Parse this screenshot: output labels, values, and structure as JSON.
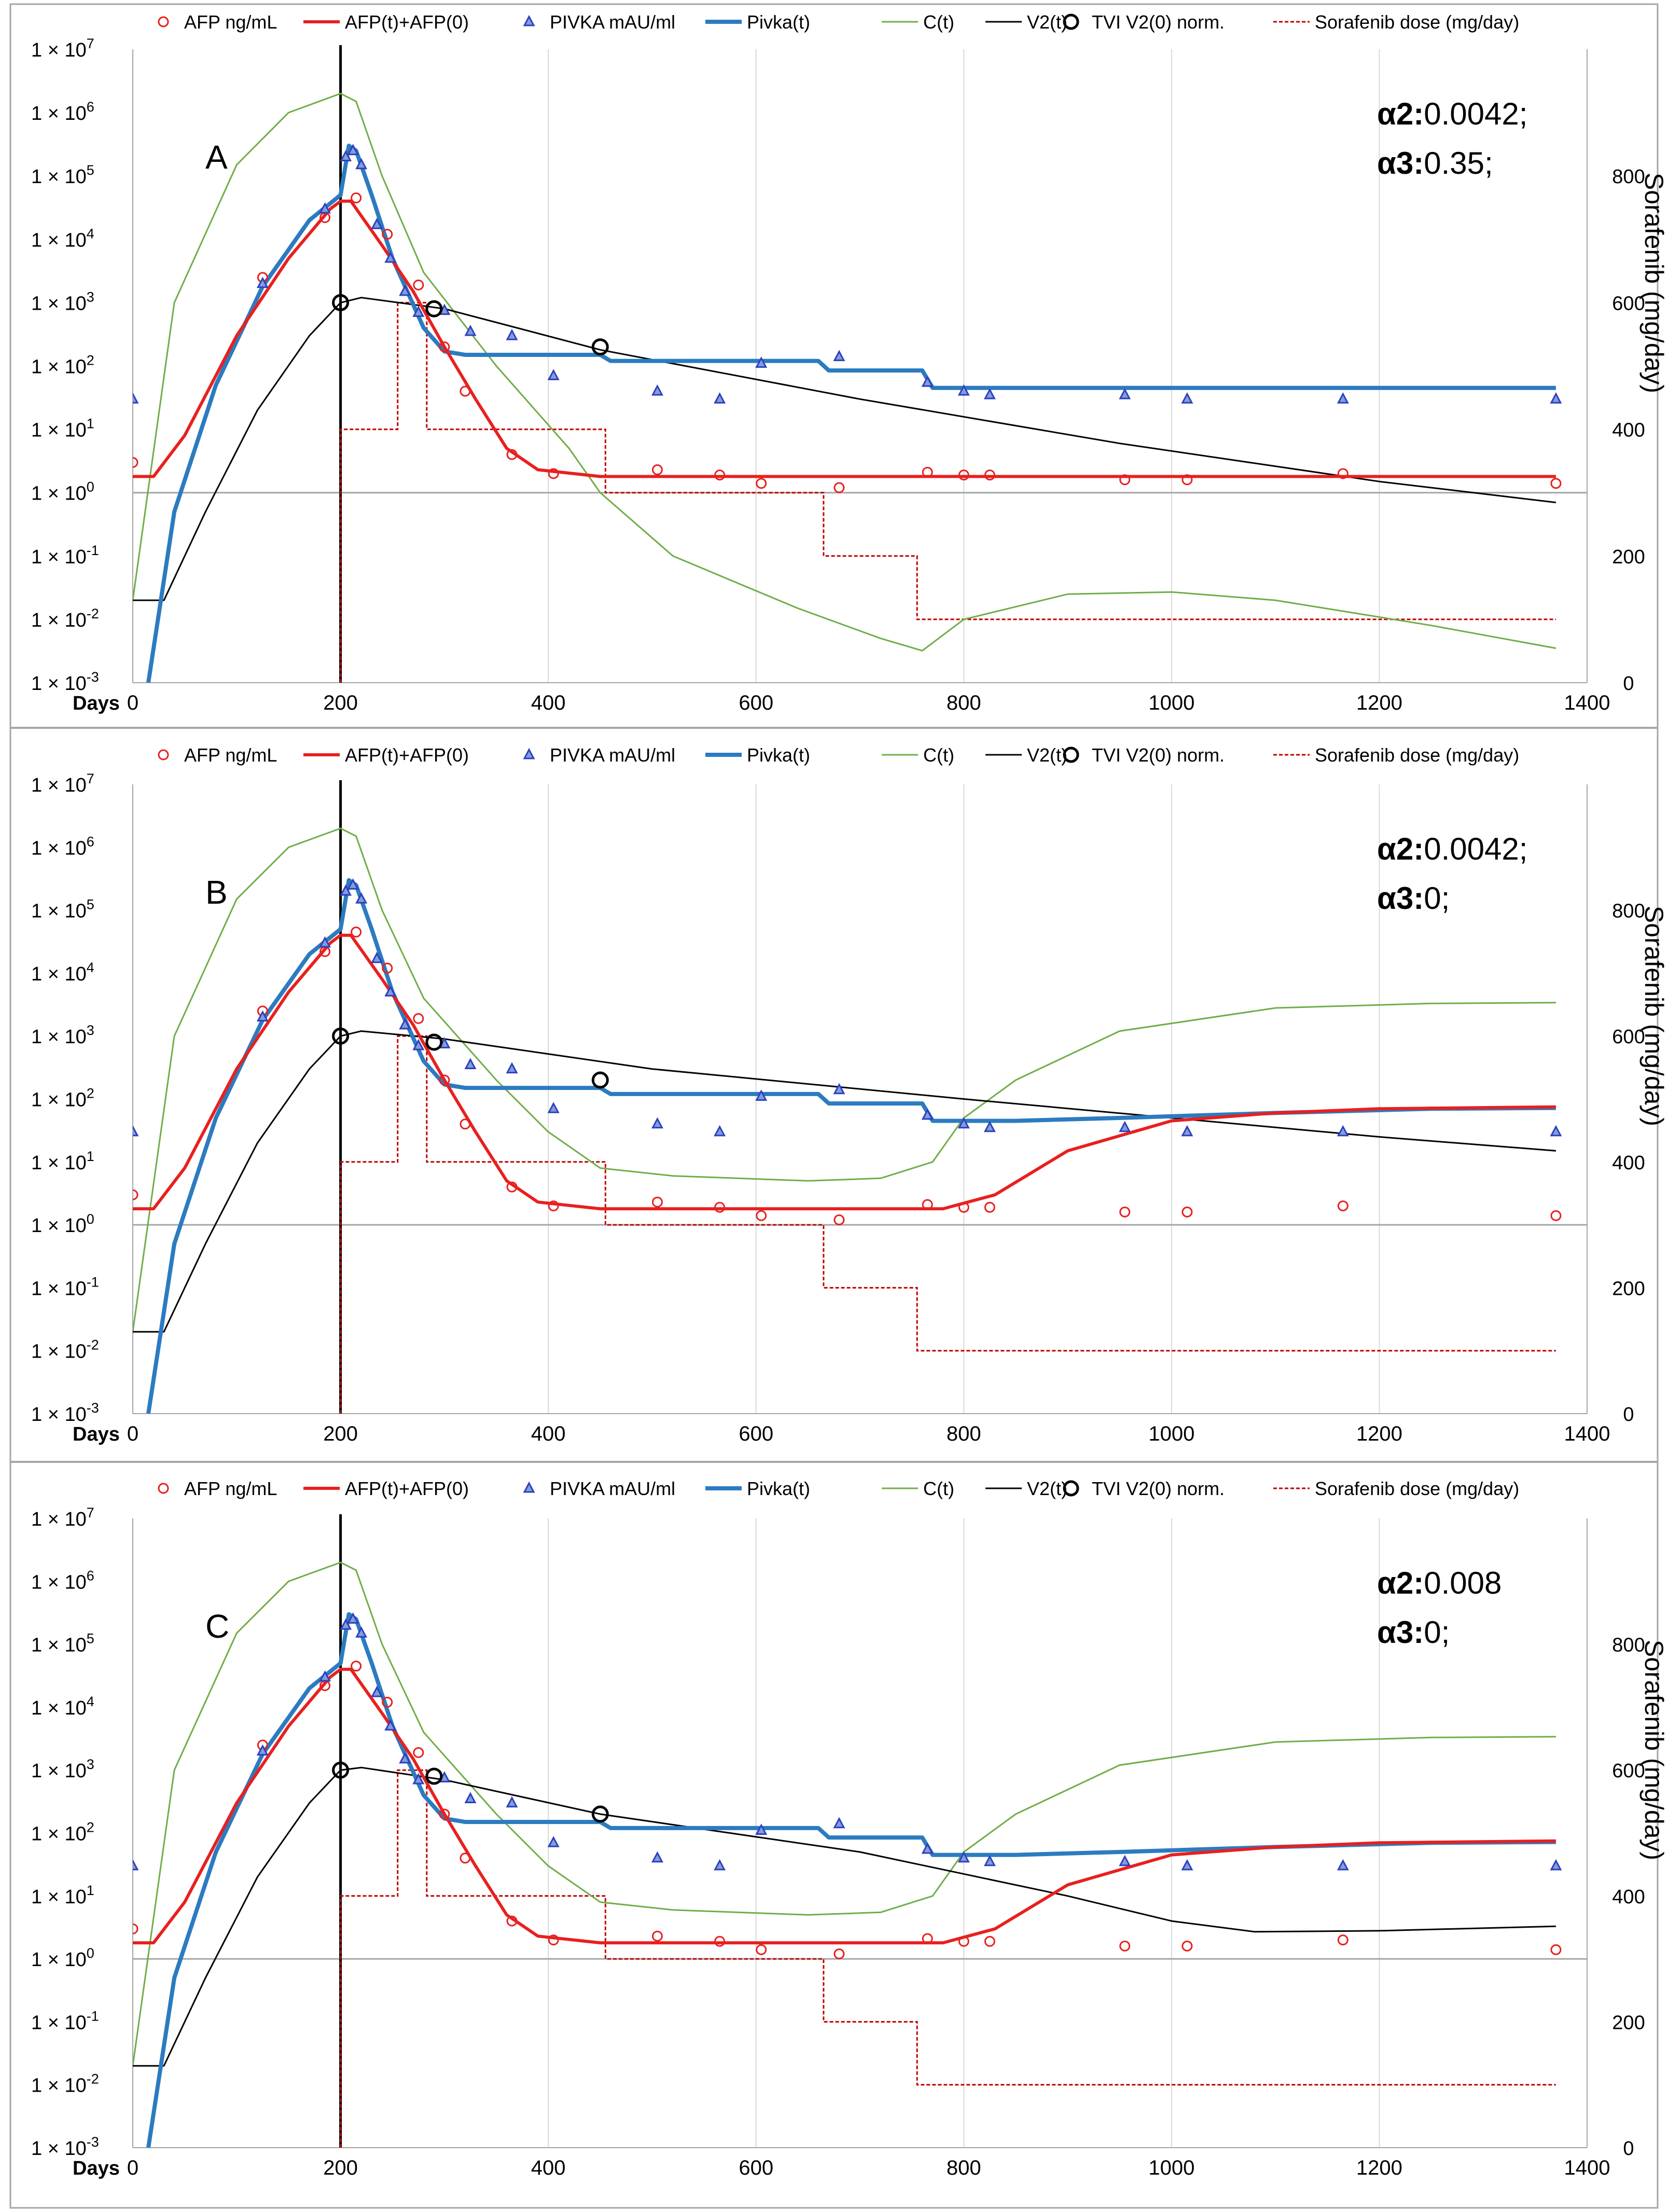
{
  "chart_data": {
    "type": "line",
    "x_axis": {
      "label": "Days",
      "range": [
        0,
        1400
      ],
      "ticks": [
        0,
        200,
        400,
        600,
        800,
        1000,
        1200,
        1400
      ]
    },
    "y_left_axis": {
      "scale": "log",
      "range": [
        0.001,
        10000000
      ],
      "ticks": [
        {
          "mant": "1 × 10",
          "exp": "7"
        },
        {
          "mant": "1 × 10",
          "exp": "6"
        },
        {
          "mant": "1 × 10",
          "exp": "5"
        },
        {
          "mant": "1 × 10",
          "exp": "4"
        },
        {
          "mant": "1 × 10",
          "exp": "3"
        },
        {
          "mant": "1 × 10",
          "exp": "2"
        },
        {
          "mant": "1 × 10",
          "exp": "1"
        },
        {
          "mant": "1 × 10",
          "exp": "0"
        },
        {
          "mant": "1 × 10",
          "exp": "-1"
        },
        {
          "mant": "1 × 10",
          "exp": "-2"
        },
        {
          "mant": "1 × 10",
          "exp": "-3"
        }
      ]
    },
    "y_right_axis": {
      "label": "Sorafenib (mg/day)",
      "range": [
        0,
        1000
      ],
      "ticks": [
        0,
        200,
        400,
        600,
        800
      ]
    },
    "legend": [
      {
        "key": "afp",
        "label": "AFP ng/mL",
        "kind": "circle",
        "color": "#e8201f"
      },
      {
        "key": "afpfit",
        "label": "AFP(t)+AFP(0)",
        "kind": "line",
        "color": "#e8201f"
      },
      {
        "key": "pivka",
        "label": "PIVKA mAU/ml",
        "kind": "triangle",
        "color": "#2f3fbf"
      },
      {
        "key": "pivkafit",
        "label": "Pivka(t)",
        "kind": "line",
        "color": "#2c7bc0"
      },
      {
        "key": "c",
        "label": "C(t)",
        "kind": "line",
        "color": "#70ad47"
      },
      {
        "key": "v2",
        "label": "V2(t)",
        "kind": "line",
        "color": "#000000"
      },
      {
        "key": "tvi",
        "label": "TVI V2(0) norm.",
        "kind": "bigcircle",
        "color": "#000000"
      },
      {
        "key": "dose",
        "label": "Sorafenib dose (mg/day)",
        "kind": "dash",
        "color": "#c00000"
      }
    ],
    "afp_obs": [
      [
        0,
        3
      ],
      [
        125,
        2500
      ],
      [
        185,
        22000
      ],
      [
        215,
        45000
      ],
      [
        245,
        12000
      ],
      [
        275,
        1900
      ],
      [
        300,
        200
      ],
      [
        320,
        40
      ],
      [
        365,
        4
      ],
      [
        405,
        2
      ],
      [
        505,
        2.3
      ],
      [
        565,
        1.9
      ],
      [
        605,
        1.4
      ],
      [
        680,
        1.2
      ],
      [
        765,
        2.1
      ],
      [
        800,
        1.9
      ],
      [
        825,
        1.9
      ],
      [
        955,
        1.6
      ],
      [
        1015,
        1.6
      ],
      [
        1165,
        2
      ],
      [
        1370,
        1.4
      ]
    ],
    "pivka_obs": [
      [
        0,
        30
      ],
      [
        125,
        2000
      ],
      [
        185,
        30000
      ],
      [
        205,
        200000
      ],
      [
        212,
        250000
      ],
      [
        220,
        150000
      ],
      [
        235,
        17000
      ],
      [
        248,
        5000
      ],
      [
        262,
        1500
      ],
      [
        275,
        700
      ],
      [
        300,
        750
      ],
      [
        325,
        350
      ],
      [
        365,
        300
      ],
      [
        405,
        70
      ],
      [
        505,
        40
      ],
      [
        565,
        30
      ],
      [
        605,
        110
      ],
      [
        680,
        140
      ],
      [
        765,
        55
      ],
      [
        800,
        40
      ],
      [
        825,
        35
      ],
      [
        955,
        35
      ],
      [
        1015,
        30
      ],
      [
        1165,
        30
      ],
      [
        1370,
        30
      ]
    ],
    "dose": [
      [
        200,
        0
      ],
      [
        200,
        400
      ],
      [
        255,
        400
      ],
      [
        255,
        600
      ],
      [
        283,
        600
      ],
      [
        283,
        400
      ],
      [
        455,
        400
      ],
      [
        455,
        300
      ],
      [
        665,
        300
      ],
      [
        665,
        200
      ],
      [
        755,
        200
      ],
      [
        755,
        100
      ],
      [
        1370,
        100
      ]
    ],
    "panels": [
      {
        "label": "A",
        "a2_label": "α2:",
        "a2_value": "0.0042;",
        "a3_label": "α3:",
        "a3_value": "0.35;",
        "afp_fit": [
          [
            0,
            1.8
          ],
          [
            20,
            1.8
          ],
          [
            50,
            8
          ],
          [
            100,
            300
          ],
          [
            150,
            5000
          ],
          [
            190,
            30000
          ],
          [
            200,
            40000
          ],
          [
            210,
            40000
          ],
          [
            240,
            8000
          ],
          [
            270,
            1500
          ],
          [
            300,
            200
          ],
          [
            330,
            30
          ],
          [
            360,
            5
          ],
          [
            390,
            2.3
          ],
          [
            450,
            1.8
          ],
          [
            1370,
            1.8
          ]
        ],
        "pivka_fit": [
          [
            15,
            0.001
          ],
          [
            40,
            0.5
          ],
          [
            80,
            50
          ],
          [
            125,
            1800
          ],
          [
            170,
            20000
          ],
          [
            200,
            50000
          ],
          [
            208,
            300000
          ],
          [
            215,
            250000
          ],
          [
            230,
            50000
          ],
          [
            250,
            5000
          ],
          [
            280,
            400
          ],
          [
            300,
            170
          ],
          [
            320,
            150
          ],
          [
            450,
            150
          ],
          [
            460,
            120
          ],
          [
            660,
            120
          ],
          [
            670,
            85
          ],
          [
            760,
            85
          ],
          [
            770,
            45
          ],
          [
            1370,
            45
          ]
        ],
        "c_fit": [
          [
            0,
            0.02
          ],
          [
            40,
            1000
          ],
          [
            100,
            150000
          ],
          [
            150,
            1000000
          ],
          [
            200,
            2000000
          ],
          [
            215,
            1500000
          ],
          [
            240,
            100000
          ],
          [
            280,
            3000
          ],
          [
            350,
            100
          ],
          [
            420,
            5
          ],
          [
            450,
            1
          ],
          [
            520,
            0.1
          ],
          [
            640,
            0.015
          ],
          [
            720,
            0.005
          ],
          [
            760,
            0.0032
          ],
          [
            800,
            0.01
          ],
          [
            900,
            0.025
          ],
          [
            1000,
            0.027
          ],
          [
            1100,
            0.02
          ],
          [
            1250,
            0.008
          ],
          [
            1370,
            0.0035
          ]
        ],
        "v2_fit": [
          [
            0,
            0.02
          ],
          [
            30,
            0.02
          ],
          [
            70,
            0.5
          ],
          [
            120,
            20
          ],
          [
            170,
            300
          ],
          [
            200,
            1000
          ],
          [
            220,
            1200
          ],
          [
            300,
            800
          ],
          [
            450,
            180
          ],
          [
            700,
            30
          ],
          [
            950,
            6
          ],
          [
            1200,
            1.5
          ],
          [
            1370,
            0.7
          ]
        ],
        "tvi_obs": [
          [
            200,
            1000
          ],
          [
            290,
            800
          ],
          [
            450,
            200
          ]
        ]
      },
      {
        "label": "B",
        "a2_label": "α2:",
        "a2_value": "0.0042;",
        "a3_label": "α3:",
        "a3_value": "0;",
        "afp_fit": [
          [
            0,
            1.8
          ],
          [
            20,
            1.8
          ],
          [
            50,
            8
          ],
          [
            100,
            300
          ],
          [
            150,
            5000
          ],
          [
            190,
            30000
          ],
          [
            200,
            40000
          ],
          [
            210,
            40000
          ],
          [
            240,
            8000
          ],
          [
            270,
            1500
          ],
          [
            300,
            200
          ],
          [
            330,
            30
          ],
          [
            360,
            5
          ],
          [
            390,
            2.3
          ],
          [
            450,
            1.8
          ],
          [
            780,
            1.8
          ],
          [
            830,
            3
          ],
          [
            900,
            15
          ],
          [
            1000,
            45
          ],
          [
            1100,
            60
          ],
          [
            1200,
            70
          ],
          [
            1370,
            75
          ]
        ],
        "pivka_fit": [
          [
            15,
            0.001
          ],
          [
            40,
            0.5
          ],
          [
            80,
            50
          ],
          [
            125,
            1800
          ],
          [
            170,
            20000
          ],
          [
            200,
            50000
          ],
          [
            208,
            300000
          ],
          [
            215,
            250000
          ],
          [
            230,
            50000
          ],
          [
            250,
            5000
          ],
          [
            280,
            400
          ],
          [
            300,
            170
          ],
          [
            320,
            150
          ],
          [
            450,
            150
          ],
          [
            460,
            120
          ],
          [
            660,
            120
          ],
          [
            670,
            85
          ],
          [
            760,
            85
          ],
          [
            770,
            45
          ],
          [
            850,
            45
          ],
          [
            950,
            50
          ],
          [
            1100,
            60
          ],
          [
            1250,
            70
          ],
          [
            1370,
            72
          ]
        ],
        "c_fit": [
          [
            0,
            0.02
          ],
          [
            40,
            1000
          ],
          [
            100,
            150000
          ],
          [
            150,
            1000000
          ],
          [
            200,
            2000000
          ],
          [
            215,
            1500000
          ],
          [
            240,
            100000
          ],
          [
            280,
            4000
          ],
          [
            350,
            200
          ],
          [
            400,
            30
          ],
          [
            450,
            8
          ],
          [
            520,
            6
          ],
          [
            650,
            5
          ],
          [
            720,
            5.5
          ],
          [
            770,
            10
          ],
          [
            800,
            50
          ],
          [
            850,
            200
          ],
          [
            950,
            1200
          ],
          [
            1100,
            2800
          ],
          [
            1250,
            3300
          ],
          [
            1370,
            3400
          ]
        ],
        "v2_fit": [
          [
            0,
            0.02
          ],
          [
            30,
            0.02
          ],
          [
            70,
            0.5
          ],
          [
            120,
            20
          ],
          [
            170,
            300
          ],
          [
            200,
            1000
          ],
          [
            220,
            1200
          ],
          [
            300,
            900
          ],
          [
            500,
            300
          ],
          [
            800,
            100
          ],
          [
            1000,
            50
          ],
          [
            1200,
            25
          ],
          [
            1370,
            15
          ]
        ],
        "tvi_obs": [
          [
            200,
            1000
          ],
          [
            290,
            800
          ],
          [
            450,
            200
          ]
        ]
      },
      {
        "label": "C",
        "a2_label": "α2:",
        "a2_value": "0.008",
        "a3_label": "α3:",
        "a3_value": "0;",
        "afp_fit": [
          [
            0,
            1.8
          ],
          [
            20,
            1.8
          ],
          [
            50,
            8
          ],
          [
            100,
            300
          ],
          [
            150,
            5000
          ],
          [
            190,
            30000
          ],
          [
            200,
            40000
          ],
          [
            210,
            40000
          ],
          [
            240,
            8000
          ],
          [
            270,
            1500
          ],
          [
            300,
            200
          ],
          [
            330,
            30
          ],
          [
            360,
            5
          ],
          [
            390,
            2.3
          ],
          [
            450,
            1.8
          ],
          [
            780,
            1.8
          ],
          [
            830,
            3
          ],
          [
            900,
            15
          ],
          [
            1000,
            45
          ],
          [
            1100,
            60
          ],
          [
            1200,
            70
          ],
          [
            1370,
            75
          ]
        ],
        "pivka_fit": [
          [
            15,
            0.001
          ],
          [
            40,
            0.5
          ],
          [
            80,
            50
          ],
          [
            125,
            1800
          ],
          [
            170,
            20000
          ],
          [
            200,
            50000
          ],
          [
            208,
            300000
          ],
          [
            215,
            250000
          ],
          [
            230,
            50000
          ],
          [
            250,
            5000
          ],
          [
            280,
            400
          ],
          [
            300,
            170
          ],
          [
            320,
            150
          ],
          [
            450,
            150
          ],
          [
            460,
            120
          ],
          [
            660,
            120
          ],
          [
            670,
            85
          ],
          [
            760,
            85
          ],
          [
            770,
            45
          ],
          [
            850,
            45
          ],
          [
            950,
            50
          ],
          [
            1100,
            60
          ],
          [
            1250,
            70
          ],
          [
            1370,
            72
          ]
        ],
        "c_fit": [
          [
            0,
            0.02
          ],
          [
            40,
            1000
          ],
          [
            100,
            150000
          ],
          [
            150,
            1000000
          ],
          [
            200,
            2000000
          ],
          [
            215,
            1500000
          ],
          [
            240,
            100000
          ],
          [
            280,
            4000
          ],
          [
            350,
            200
          ],
          [
            400,
            30
          ],
          [
            450,
            8
          ],
          [
            520,
            6
          ],
          [
            650,
            5
          ],
          [
            720,
            5.5
          ],
          [
            770,
            10
          ],
          [
            800,
            50
          ],
          [
            850,
            200
          ],
          [
            950,
            1200
          ],
          [
            1100,
            2800
          ],
          [
            1250,
            3300
          ],
          [
            1370,
            3400
          ]
        ],
        "v2_fit": [
          [
            0,
            0.02
          ],
          [
            30,
            0.02
          ],
          [
            70,
            0.5
          ],
          [
            120,
            20
          ],
          [
            170,
            300
          ],
          [
            200,
            1000
          ],
          [
            220,
            1100
          ],
          [
            300,
            700
          ],
          [
            450,
            200
          ],
          [
            700,
            50
          ],
          [
            900,
            10
          ],
          [
            1000,
            4
          ],
          [
            1080,
            2.7
          ],
          [
            1200,
            2.8
          ],
          [
            1370,
            3.3
          ]
        ],
        "tvi_obs": [
          [
            200,
            1000
          ],
          [
            290,
            800
          ],
          [
            450,
            200
          ]
        ]
      }
    ]
  }
}
